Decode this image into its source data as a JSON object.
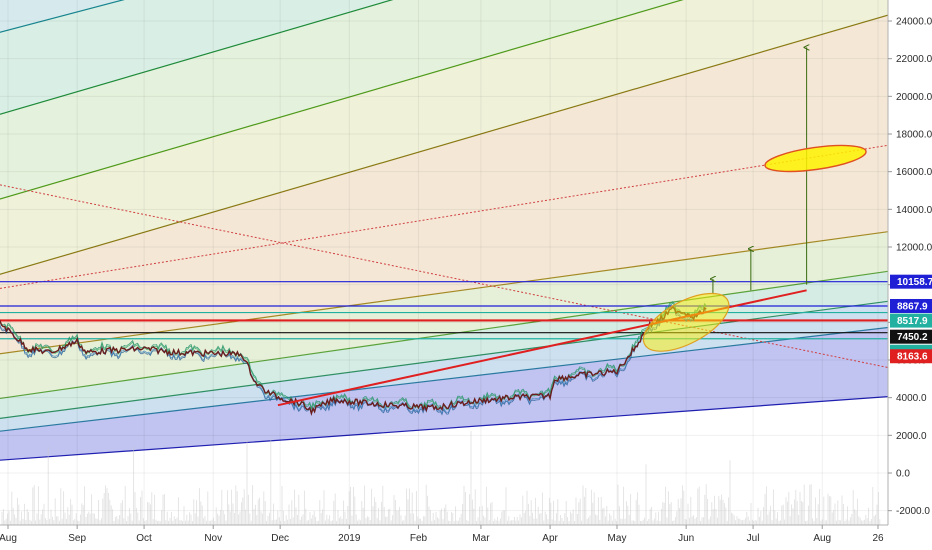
{
  "chart_data": {
    "type": "line",
    "title": "",
    "xlabel": "",
    "ylabel": "",
    "ylim": [
      -2600,
      25000
    ],
    "y_ticks": [
      24000,
      22000,
      20000,
      18000,
      16000,
      14000,
      12000,
      10000,
      8000,
      6000,
      4000,
      2000,
      0,
      -2000
    ],
    "y_tick_labels": [
      "24000.0",
      "22000.0",
      "20000.0",
      "18000.0",
      "16000.0",
      "14000.0",
      "12000.0",
      "10000.0",
      "8000.0",
      "6000.0",
      "4000.0",
      "2000.0",
      "0.0",
      "-2000.0"
    ],
    "x_tick_labels": [
      "Aug",
      "Sep",
      "Oct",
      "Nov",
      "Dec",
      "2019",
      "Feb",
      "Mar",
      "Apr",
      "May",
      "Jun",
      "Jul",
      "Aug",
      "26"
    ],
    "x_tick_dates": [
      "2018-08-01",
      "2018-09-01",
      "2018-10-01",
      "2018-11-01",
      "2018-12-01",
      "2019-01-01",
      "2019-02-01",
      "2019-03-01",
      "2019-04-01",
      "2019-05-01",
      "2019-06-01",
      "2019-07-01",
      "2019-08-01",
      "2019-08-26"
    ],
    "grid": true,
    "price_series": {
      "name": "",
      "x": [
        "2018-07-24",
        "2018-08-01",
        "2018-08-10",
        "2018-08-20",
        "2018-09-01",
        "2018-09-05",
        "2018-09-15",
        "2018-10-01",
        "2018-10-15",
        "2018-11-01",
        "2018-11-14",
        "2018-11-20",
        "2018-11-25",
        "2018-12-01",
        "2018-12-10",
        "2018-12-15",
        "2018-12-25",
        "2019-01-01",
        "2019-01-10",
        "2019-01-20",
        "2019-02-01",
        "2019-02-08",
        "2019-02-20",
        "2019-03-01",
        "2019-03-15",
        "2019-04-01",
        "2019-04-03",
        "2019-04-15",
        "2019-05-01",
        "2019-05-10",
        "2019-05-15",
        "2019-05-20",
        "2019-05-26",
        "2019-06-01",
        "2019-06-05",
        "2019-06-10"
      ],
      "y": [
        8400,
        7600,
        6600,
        6400,
        7000,
        6400,
        6500,
        6600,
        6400,
        6350,
        6300,
        4800,
        4300,
        4000,
        3700,
        3300,
        3900,
        3800,
        3700,
        3600,
        3500,
        3450,
        3700,
        3850,
        4000,
        4100,
        5000,
        5200,
        5400,
        6800,
        7800,
        8100,
        8700,
        8500,
        8300,
        8700
      ]
    },
    "horizontal_levels": [
      {
        "value": 10158.7,
        "label": "10158.7",
        "color": "#1f1fd6"
      },
      {
        "value": 8867.9,
        "label": "8867.9",
        "color": "#1f1fd6"
      },
      {
        "value": 8517.9,
        "label": "8517.9",
        "color": "#22b0a0"
      },
      {
        "value": 8100,
        "label": "",
        "color": "#e02020"
      },
      {
        "value": 7450.2,
        "label": "7450.2",
        "color": "#111111"
      },
      {
        "value": 7129,
        "label": "",
        "color": "#22b0a0"
      },
      {
        "value": 8163.6,
        "label": "8163.6",
        "color": "#e02020"
      }
    ],
    "trendline": {
      "color": "#e02020",
      "from": [
        "2018-11-30",
        3600
      ],
      "to": [
        "2019-07-25",
        9700
      ]
    },
    "projection_arrows": [
      {
        "date": "2019-06-13",
        "from": 9500,
        "to": 10300
      },
      {
        "date": "2019-06-30",
        "from": 9700,
        "to": 11900
      },
      {
        "date": "2019-07-25",
        "from": 10000,
        "to": 22600
      }
    ],
    "highlight_ellipses": [
      {
        "center_date": "2019-06-01",
        "center_value": 8000,
        "fill": "#fff200"
      },
      {
        "center_date": "2019-07-29",
        "center_value": 16700,
        "fill": "#fff200"
      }
    ],
    "colors": {
      "price": "#6b1d1d",
      "bands": [
        "#9fa4e6",
        "#a9cbe6",
        "#bfe3dc",
        "#cfe8cf",
        "#dde9c9",
        "#ece4c4",
        "#f1d8c2"
      ],
      "volume": "#c9c9c9"
    }
  }
}
